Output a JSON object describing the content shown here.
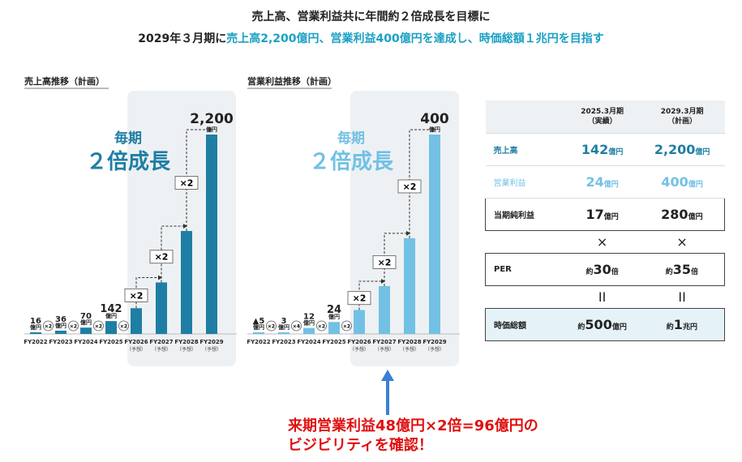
{
  "headline": {
    "line1": "売上高、営業利益共に年間約２倍成長を目標に",
    "line2_prefix": "2029年３月期に",
    "line2_highlight": "売上高2,200億円、営業利益400億円を達成し、時価総額１兆円を目指す"
  },
  "colors": {
    "sales": "#1f7ea4",
    "op_profit": "#72c1e4",
    "shade": "#eef1f3",
    "callout": "#e01010"
  },
  "chart_data": [
    {
      "type": "bar",
      "title": "売上高推移（計画）",
      "categories": [
        "FY2022",
        "FY2023",
        "FY2024",
        "FY2025",
        "FY2026",
        "FY2027",
        "FY2028",
        "FY2029"
      ],
      "category_sub": [
        "",
        "",
        "",
        "",
        "（予想）",
        "（予想）",
        "（予想）",
        "（予想）"
      ],
      "values": [
        16,
        36,
        70,
        142,
        284,
        568,
        1136,
        2200
      ],
      "labels": [
        "16",
        "36",
        "70",
        "142",
        "",
        "",
        "",
        "2,200"
      ],
      "unit": "億円",
      "growth_small": [
        "×2",
        "×2",
        "×2",
        "×2"
      ],
      "growth_big": [
        "×2",
        "×2",
        "×2"
      ],
      "annotation_line1": "毎期",
      "annotation_line2": "２倍成長",
      "ylim": [
        0,
        2200
      ]
    },
    {
      "type": "bar",
      "title": "営業利益推移（計画）",
      "categories": [
        "FY2022",
        "FY2023",
        "FY2024",
        "FY2025",
        "FY2026",
        "FY2027",
        "FY2028",
        "FY2029"
      ],
      "category_sub": [
        "",
        "",
        "",
        "",
        "（予想）",
        "（予想）",
        "（予想）",
        "（予想）"
      ],
      "values": [
        -5,
        3,
        12,
        24,
        48,
        96,
        192,
        400
      ],
      "labels": [
        "▲5",
        "3",
        "12",
        "24",
        "",
        "",
        "",
        "400"
      ],
      "unit": "億円",
      "growth_small": [
        "×2",
        "×4",
        "×2",
        "×2"
      ],
      "growth_big": [
        "×2",
        "×2",
        "×2"
      ],
      "annotation_line1": "毎期",
      "annotation_line2": "２倍成長",
      "ylim": [
        0,
        400
      ]
    }
  ],
  "kpi_table": {
    "col1_header": "2025.3月期\n（実績）",
    "col2_header": "2029.3月期\n（計画）",
    "rows": {
      "sales": {
        "label": "売上高",
        "v1": "142",
        "v2": "2,200",
        "unit": "億円"
      },
      "op": {
        "label": "営業利益",
        "v1": "24",
        "v2": "400",
        "unit": "億円"
      },
      "net": {
        "label": "当期純利益",
        "v1": "17",
        "v2": "280",
        "unit": "億円"
      },
      "times": {
        "v1": "×",
        "v2": "×"
      },
      "per": {
        "label": "PER",
        "prefix": "約",
        "v1": "30",
        "v2": "35",
        "unit": "倍"
      },
      "equals": {
        "v1": "II",
        "v2": "II"
      },
      "mcap": {
        "label": "時価総額",
        "prefix": "約",
        "v1": "500",
        "unit1": "億円",
        "v2": "1",
        "unit2": "兆円"
      }
    }
  },
  "callout": {
    "line1": "来期営業利益48億円×2倍=96億円の",
    "line2": "ビジビリティを確認！"
  }
}
